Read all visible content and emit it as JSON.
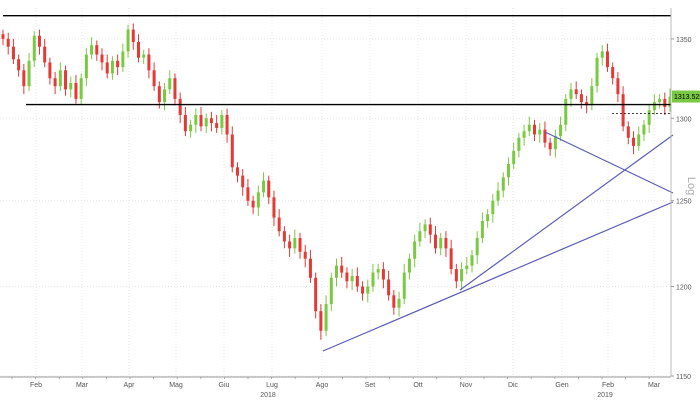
{
  "chart_data": {
    "type": "candlestick",
    "scale": "log",
    "scale_label": "Log",
    "ylim": [
      1150,
      1370
    ],
    "y_ticks": [
      1150,
      1200,
      1250,
      1300,
      1350
    ],
    "y_tick_labels": [
      "1150",
      "1200",
      "1250",
      "1300",
      "1350"
    ],
    "x_months": [
      "Feb",
      "Mar",
      "Apr",
      "Mag",
      "Giu",
      "Lug",
      "Ago",
      "Set",
      "Ott",
      "Nov",
      "Dic",
      "Gen",
      "Feb",
      "Mar"
    ],
    "x_years": [
      "2018",
      "2019"
    ],
    "last_price_label": "1313.5251",
    "last_price": 1313.5,
    "colors": {
      "up": "#7ac943",
      "down": "#e53935",
      "trendline": "#5c5cb8",
      "level": "#000000",
      "price_tag": "#7ac943"
    },
    "horizontal_levels": [
      1365,
      1308.5
    ],
    "dashed_level": 1303,
    "closes": [
      1350,
      1345,
      1337,
      1330,
      1320,
      1336,
      1352,
      1345,
      1335,
      1325,
      1320,
      1330,
      1318,
      1322,
      1312,
      1325,
      1340,
      1346,
      1340,
      1335,
      1328,
      1336,
      1332,
      1342,
      1356,
      1348,
      1338,
      1340,
      1330,
      1320,
      1310,
      1318,
      1325,
      1312,
      1302,
      1292,
      1296,
      1302,
      1295,
      1300,
      1297,
      1294,
      1302,
      1290,
      1270,
      1265,
      1258,
      1250,
      1246,
      1255,
      1262,
      1252,
      1240,
      1232,
      1226,
      1222,
      1228,
      1220,
      1216,
      1205,
      1186,
      1175,
      1190,
      1205,
      1212,
      1208,
      1203,
      1206,
      1200,
      1196,
      1200,
      1208,
      1210,
      1204,
      1195,
      1188,
      1193,
      1208,
      1216,
      1226,
      1232,
      1236,
      1230,
      1222,
      1228,
      1222,
      1210,
      1203,
      1210,
      1212,
      1218,
      1228,
      1238,
      1242,
      1250,
      1256,
      1264,
      1272,
      1280,
      1288,
      1292,
      1296,
      1290,
      1293,
      1285,
      1281,
      1289,
      1296,
      1312,
      1318,
      1315,
      1310,
      1308,
      1320,
      1338,
      1342,
      1332,
      1325,
      1315,
      1295,
      1288,
      1283,
      1290,
      1296,
      1305,
      1310,
      1312,
      1307,
      1313.5
    ]
  }
}
